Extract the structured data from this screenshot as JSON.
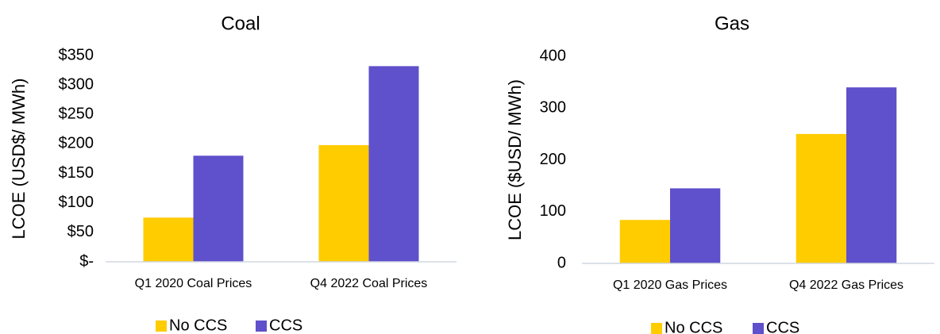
{
  "chart_data": [
    {
      "type": "bar",
      "title": "Coal",
      "y_label": "LCOE (USD$/ MWh)",
      "categories": [
        "Q1 2020 Coal Prices",
        "Q4 2022 Coal Prices"
      ],
      "series": [
        {
          "name": "No CCS",
          "color": "#ffcc00",
          "values": [
            75,
            198
          ]
        },
        {
          "name": "CCS",
          "color": "#5f50cb",
          "values": [
            180,
            332
          ]
        }
      ],
      "ylim": [
        0,
        350
      ],
      "yticks": [
        {
          "value": 0,
          "label": "$-"
        },
        {
          "value": 50,
          "label": "$50"
        },
        {
          "value": 100,
          "label": "$100"
        },
        {
          "value": 150,
          "label": "$150"
        },
        {
          "value": 200,
          "label": "$200"
        },
        {
          "value": 250,
          "label": "$250"
        },
        {
          "value": 300,
          "label": "$300"
        },
        {
          "value": 350,
          "label": "$350"
        }
      ],
      "grid": false,
      "legend": "bottom"
    },
    {
      "type": "bar",
      "title": "Gas",
      "y_label": "LCOE ($USD/ MWh)",
      "categories": [
        "Q1 2020 Gas Prices",
        "Q4 2022 Gas Prices"
      ],
      "series": [
        {
          "name": "No CCS",
          "color": "#ffcc00",
          "values": [
            84,
            250
          ]
        },
        {
          "name": "CCS",
          "color": "#5f50cb",
          "values": [
            145,
            340
          ]
        }
      ],
      "ylim": [
        0,
        400
      ],
      "yticks": [
        0,
        100,
        200,
        300,
        400
      ],
      "grid": false,
      "legend": "bottom"
    }
  ]
}
